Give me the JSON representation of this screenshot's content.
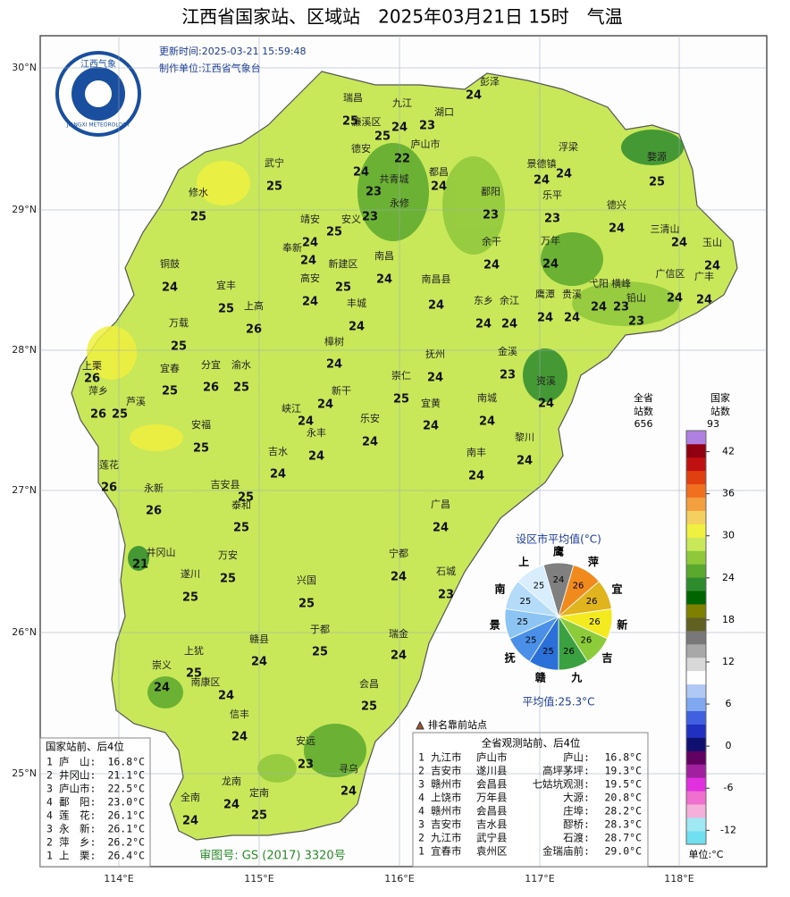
{
  "title": "江西省国家站、区域站　2025年03月21日 15时　气温",
  "update_time": "更新时间:2025-03-21 15:59:48",
  "producer": "制作单位:江西省气象台",
  "logo": {
    "cn": "江西气象",
    "en": "JIANGXI METEOROLOGY"
  },
  "lat_labels": [
    "30°N",
    "29°N",
    "28°N",
    "27°N",
    "26°N",
    "25°N"
  ],
  "lon_labels": [
    "114°E",
    "115°E",
    "116°E",
    "117°E",
    "118°E"
  ],
  "stations": [
    {
      "name": "瑞昌",
      "value": 25
    },
    {
      "name": "九江",
      "value": 24
    },
    {
      "name": "湖口",
      "value": 23
    },
    {
      "name": "彭泽",
      "value": 24
    },
    {
      "name": "濂溪区",
      "value": 25
    },
    {
      "name": "庐山市",
      "value": 22
    },
    {
      "name": "德安",
      "value": 24
    },
    {
      "name": "武宁",
      "value": 25
    },
    {
      "name": "都昌",
      "value": 24
    },
    {
      "name": "共青城",
      "value": 23
    },
    {
      "name": "永修",
      "value": 23
    },
    {
      "name": "修水",
      "value": 25
    },
    {
      "name": "浮梁",
      "value": 24
    },
    {
      "name": "景德镇",
      "value": 24
    },
    {
      "name": "婺源",
      "value": 25
    },
    {
      "name": "鄱阳",
      "value": 23
    },
    {
      "name": "乐平",
      "value": 23
    },
    {
      "name": "德兴",
      "value": 24
    },
    {
      "name": "三清山",
      "value": 24
    },
    {
      "name": "玉山",
      "value": 24
    },
    {
      "name": "靖安",
      "value": 24
    },
    {
      "name": "安义",
      "value": 25
    },
    {
      "name": "奉新",
      "value": 24
    },
    {
      "name": "新建区",
      "value": 25
    },
    {
      "name": "南昌",
      "value": 24
    },
    {
      "name": "南昌县",
      "value": 24
    },
    {
      "name": "余干",
      "value": 24
    },
    {
      "name": "万年",
      "value": 24
    },
    {
      "name": "铜鼓",
      "value": 24
    },
    {
      "name": "宜丰",
      "value": 25
    },
    {
      "name": "高安",
      "value": 24
    },
    {
      "name": "上高",
      "value": 26
    },
    {
      "name": "丰城",
      "value": 24
    },
    {
      "name": "东乡",
      "value": 24
    },
    {
      "name": "余江",
      "value": 24
    },
    {
      "name": "鹰潭",
      "value": 24
    },
    {
      "name": "贵溪",
      "value": 24
    },
    {
      "name": "弋阳",
      "value": 24
    },
    {
      "name": "横峰",
      "value": 23
    },
    {
      "name": "铅山",
      "value": 23
    },
    {
      "name": "广信区",
      "value": 24
    },
    {
      "name": "广丰",
      "value": 24
    },
    {
      "name": "万载",
      "value": 25
    },
    {
      "name": "樟树",
      "value": 24
    },
    {
      "name": "抚州",
      "value": 24
    },
    {
      "name": "金溪",
      "value": 23
    },
    {
      "name": "上栗",
      "value": 26
    },
    {
      "name": "宜春",
      "value": 25
    },
    {
      "name": "分宜",
      "value": 26
    },
    {
      "name": "渝水",
      "value": 25
    },
    {
      "name": "崇仁",
      "value": 25
    },
    {
      "name": "资溪",
      "value": 24
    },
    {
      "name": "萍乡",
      "value": 26
    },
    {
      "name": "芦溪",
      "value": 25
    },
    {
      "name": "新干",
      "value": 24
    },
    {
      "name": "宜黄",
      "value": 24
    },
    {
      "name": "南城",
      "value": 24
    },
    {
      "name": "峡江",
      "value": 24
    },
    {
      "name": "永丰",
      "value": 24
    },
    {
      "name": "乐安",
      "value": 24
    },
    {
      "name": "安福",
      "value": 25
    },
    {
      "name": "黎川",
      "value": 24
    },
    {
      "name": "吉水",
      "value": 24
    },
    {
      "name": "南丰",
      "value": 24
    },
    {
      "name": "莲花",
      "value": 26
    },
    {
      "name": "吉安县",
      "value": 25
    },
    {
      "name": "永新",
      "value": 26
    },
    {
      "name": "泰和",
      "value": 25
    },
    {
      "name": "井冈山",
      "value": 21
    },
    {
      "name": "广昌",
      "value": 24
    },
    {
      "name": "宁都",
      "value": 24
    },
    {
      "name": "万安",
      "value": 25
    },
    {
      "name": "石城",
      "value": 23
    },
    {
      "name": "遂川",
      "value": 25
    },
    {
      "name": "兴国",
      "value": 25
    },
    {
      "name": "于都",
      "value": 25
    },
    {
      "name": "瑞金",
      "value": 24
    },
    {
      "name": "赣县",
      "value": 24
    },
    {
      "name": "上犹",
      "value": 25
    },
    {
      "name": "崇义",
      "value": 24
    },
    {
      "name": "南康区",
      "value": 24
    },
    {
      "name": "会昌",
      "value": 25
    },
    {
      "name": "信丰",
      "value": 24
    },
    {
      "name": "安远",
      "value": 23
    },
    {
      "name": "寻乌",
      "value": 24
    },
    {
      "name": "龙南",
      "value": 24
    },
    {
      "name": "全南",
      "value": 24
    },
    {
      "name": "定南",
      "value": 25
    }
  ],
  "pie": {
    "title": "设区市平均值(°C)",
    "labels": [
      "鹰",
      "萍",
      "宜",
      "新",
      "吉",
      "九",
      "赣",
      "抚",
      "景",
      "南",
      "上"
    ],
    "values": [
      24,
      26,
      26,
      26,
      26,
      26,
      25,
      25,
      25,
      25,
      25
    ],
    "colors": [
      "#808080",
      "#f08a1c",
      "#e0b41c",
      "#f4ea20",
      "#8ccc3a",
      "#3aa040",
      "#2a70d8",
      "#4a90e8",
      "#8cc4f4",
      "#b4dcf8",
      "#d8eefc"
    ],
    "average": "平均值:25.3°C"
  },
  "legend": {
    "provincial_header": [
      "全省",
      "站数"
    ],
    "provincial_count": 656,
    "national_header": [
      "国家",
      "站数"
    ],
    "national_count": 93,
    "lim": [
      -14,
      45
    ],
    "ticks": [
      42,
      36,
      30,
      24,
      18,
      12,
      6,
      0,
      -6,
      -12
    ],
    "colors": [
      "#70e0f0",
      "#a0e8f4",
      "#f4b0d8",
      "#f070d0",
      "#e030e0",
      "#a020a0",
      "#600060",
      "#101070",
      "#2030c0",
      "#4060e0",
      "#80a8f0",
      "#b0c8f4",
      "#ffffff",
      "#d8d8d8",
      "#a8a8a8",
      "#787878",
      "#606020",
      "#808000",
      "#006400",
      "#2e8b2e",
      "#5aa82e",
      "#90c83c",
      "#c8e85a",
      "#f0f040",
      "#f4d060",
      "#f4a040",
      "#f07020",
      "#e04010",
      "#c01010",
      "#900010",
      "#b080e0"
    ],
    "unit": "单位:°C"
  },
  "rank_marker_label": "排名靠前站点",
  "national_table": {
    "title": "国家站前、后4位",
    "rows": [
      [
        "1",
        "庐　山:",
        "16.8°C"
      ],
      [
        "2",
        "井冈山:",
        "21.1°C"
      ],
      [
        "3",
        "庐山市:",
        "22.5°C"
      ],
      [
        "4",
        "鄱　阳:",
        "23.0°C"
      ],
      [
        "4",
        "莲　花:",
        "26.1°C"
      ],
      [
        "3",
        "永　新:",
        "26.1°C"
      ],
      [
        "2",
        "萍　乡:",
        "26.2°C"
      ],
      [
        "1",
        "上　栗:",
        "26.4°C"
      ]
    ]
  },
  "province_table": {
    "title": "全省观测站前、后4位",
    "rows": [
      [
        "1",
        "九江市",
        "庐山市",
        "庐山:",
        "16.8°C"
      ],
      [
        "2",
        "吉安市",
        "遂川县",
        "高坪茅坪:",
        "19.3°C"
      ],
      [
        "3",
        "赣州市",
        "会昌县",
        "七姑坑观测:",
        "19.5°C"
      ],
      [
        "4",
        "上饶市",
        "万年县",
        "大源:",
        "20.8°C"
      ],
      [
        "4",
        "赣州市",
        "会昌县",
        "庄埠:",
        "28.2°C"
      ],
      [
        "3",
        "吉安市",
        "吉水县",
        "醪桥:",
        "28.3°C"
      ],
      [
        "2",
        "九江市",
        "武宁县",
        "石渡:",
        "28.7°C"
      ],
      [
        "1",
        "宜春市",
        "袁州区",
        "金瑞庙前:",
        "29.0°C"
      ]
    ]
  },
  "approval": "审图号: GS (2017) 3320号"
}
